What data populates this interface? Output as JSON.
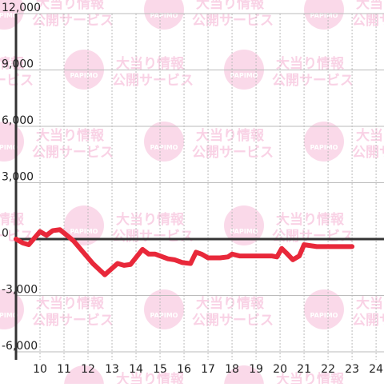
{
  "chart_data": {
    "type": "line",
    "watermark": [
      "大当り情報",
      "公開サービス",
      "PAPIMO"
    ],
    "xlim": [
      9,
      24.33
    ],
    "xticks": [
      10,
      11,
      12,
      13,
      14,
      15,
      16,
      17,
      18,
      19,
      20,
      21,
      22,
      23,
      24
    ],
    "ylim": [
      -6000,
      12000
    ],
    "yticks": [
      {
        "value": -6000,
        "label": "-6,000"
      },
      {
        "value": -3000,
        "label": "-3,000"
      },
      0,
      {
        "value": 3000,
        "label": "3,000"
      },
      {
        "value": 6000,
        "label": "6,000"
      },
      {
        "value": 9000,
        "label": "9,000"
      },
      {
        "value": 12000,
        "label": "12,000"
      }
    ],
    "grid": true,
    "series": [
      {
        "color": "#e8283a",
        "x": [
          9.0,
          9.27,
          9.53,
          10.0,
          10.27,
          10.53,
          10.83,
          11.07,
          11.4,
          11.8,
          12.2,
          12.7,
          13.23,
          13.5,
          13.77,
          14.27,
          14.53,
          14.8,
          15.33,
          15.6,
          15.93,
          16.27,
          16.5,
          16.73,
          17.0,
          17.5,
          17.83,
          18.0,
          18.33,
          19.67,
          19.87,
          20.07,
          20.27,
          20.53,
          20.8,
          21.0,
          21.27,
          21.53,
          23.0
        ],
        "values": [
          0,
          -200,
          -300,
          400,
          200,
          450,
          500,
          250,
          -100,
          -700,
          -1300,
          -1900,
          -1300,
          -1400,
          -1350,
          -550,
          -800,
          -800,
          -1050,
          -1100,
          -1250,
          -1300,
          -700,
          -800,
          -1000,
          -1000,
          -950,
          -800,
          -900,
          -900,
          -950,
          -500,
          -750,
          -1100,
          -900,
          -300,
          -350,
          -400,
          -400
        ]
      }
    ]
  }
}
